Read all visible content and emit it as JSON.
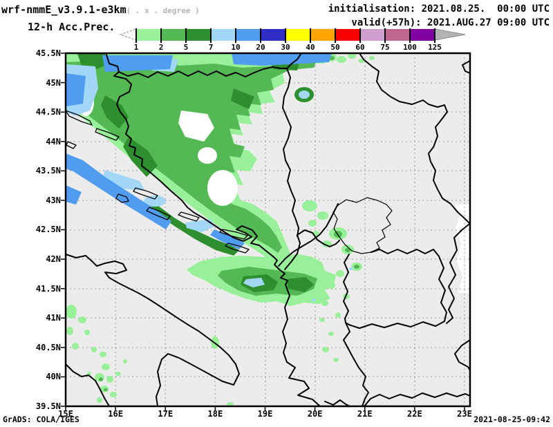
{
  "title": {
    "model": "wrf-nmmE_v3.9.1-e3km",
    "units_note": "( . x . degree )",
    "product": "12-h Acc.Prec."
  },
  "run_info": {
    "initialisation": "initialisation: 2021.08.25.  00:00 UTC",
    "valid": "valid(+57h): 2021.AUG.27 09:00 UTC"
  },
  "colorbar": {
    "tick_values": [
      "1",
      "2",
      "5",
      "7",
      "10",
      "20",
      "30",
      "40",
      "50",
      "60",
      "75",
      "100",
      "125"
    ],
    "cell_colors": [
      "#98f098",
      "#54b854",
      "#2e8f2e",
      "#a2d8f5",
      "#4f9cf0",
      "#2f2fc8",
      "#ffff00",
      "#ffa500",
      "#fa0000",
      "#cf9fcf",
      "#c06890",
      "#7e00a0"
    ],
    "underflow_arrow": "dashed-open-arrow-left",
    "overflow_arrow_color": "#b4b4b4"
  },
  "map": {
    "background": "#ececec",
    "lat_labels": [
      "45.5N",
      "45N",
      "44.5N",
      "44N",
      "43.5N",
      "43N",
      "42.5N",
      "42N",
      "41.5N",
      "41N",
      "40.5N",
      "40N",
      "39.5N"
    ],
    "lon_labels": [
      "15E",
      "16E",
      "17E",
      "18E",
      "19E",
      "20E",
      "21E",
      "22E",
      "23E"
    ],
    "precip_colors": {
      "1-2": "#98f098",
      "2-5": "#54b854",
      "5-7": "#2e8f2e",
      "7-10": "#a2d8f5",
      "10-20": "#4f9cf0"
    }
  },
  "footer": {
    "credit": "GrADS: COLA/IGES",
    "timestamp": "2021-08-25-09:42"
  }
}
